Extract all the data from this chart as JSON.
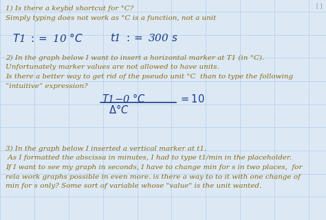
{
  "background_color": "#dce9f5",
  "grid_color": "#b8d0e8",
  "text_color_brown": "#8B6914",
  "text_color_blue": "#1a3a8a",
  "figsize": [
    4.74,
    3.2
  ],
  "dpi": 100,
  "line1_q1": "1) Is there a keybd shortcut for °C?",
  "line2_q1": "Simply typing does not work as °C is a function, not a unit",
  "line1_q2": "2) In the graph below I want to insert a horizontal marker at T1 (in °C).",
  "line2_q2": "Unfortunately marker values are not allowed to have units.",
  "line3_q2": "Is there a better way to get rid of the pseudo unit °C  than to type the following",
  "line4_q2": "“intuitive” expression?",
  "line1_q3": "3) In the graph below I inserted a vertical marker at t1.",
  "line2_q3": " As I formatted the abscissa in minutes, I had to type t1/min in the placeholder.",
  "line3_q3": "If I want to see my graph in seconds, I have to change min for s in two places,  for",
  "line4_q3": "rela work graphs possible in even more. is there a way to to it with one change of",
  "line5_q3": "min for s only? Some sort of variable whose \"value\" is the unit wanted."
}
